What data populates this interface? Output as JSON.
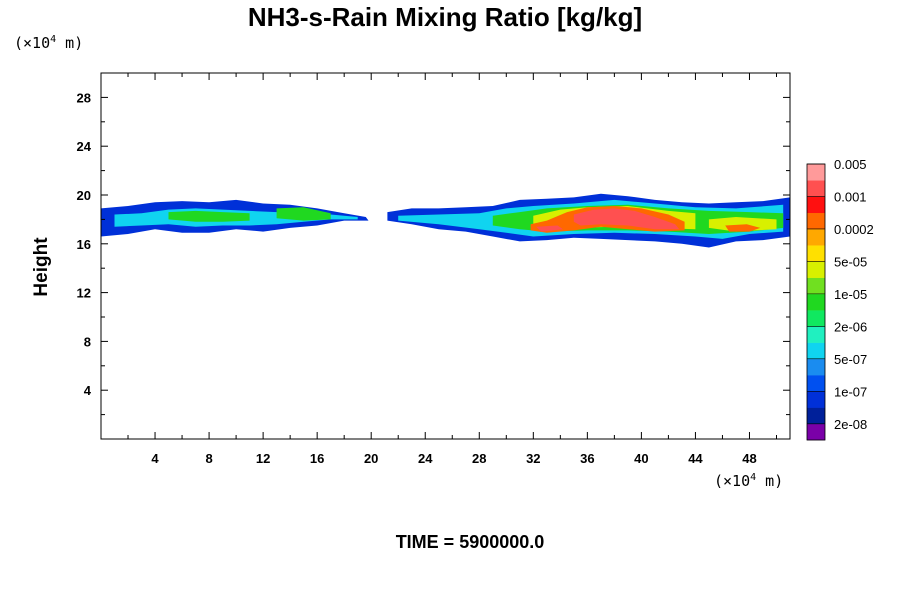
{
  "chart_data": {
    "type": "heatmap",
    "title": "NH3-s-Rain Mixing Ratio [kg/kg]",
    "xlabel": "",
    "ylabel": "Height",
    "x_unit": {
      "prefix": "(×10",
      "exp": "4",
      "suffix": " m)"
    },
    "y_unit": {
      "prefix": "(×10",
      "exp": "4",
      "suffix": " m)"
    },
    "xlim": [
      0,
      51
    ],
    "ylim": [
      0,
      30
    ],
    "x_ticks": [
      "4",
      "8",
      "12",
      "16",
      "20",
      "24",
      "28",
      "32",
      "36",
      "40",
      "44",
      "48"
    ],
    "y_ticks": [
      "4",
      "8",
      "12",
      "16",
      "20",
      "24",
      "28"
    ],
    "time_label": "TIME = 5900000.0",
    "colorbar": {
      "colors": [
        "#7a00a8",
        "#00209a",
        "#0030d8",
        "#0050f0",
        "#1a8cf0",
        "#10d4f0",
        "#20f0c0",
        "#10e860",
        "#20d820",
        "#70e020",
        "#d8f000",
        "#ffe000",
        "#ffa800",
        "#ff6800",
        "#ff1010",
        "#ff5050",
        "#ff9a9a"
      ],
      "labels": [
        "2e-08",
        "1e-07",
        "5e-07",
        "2e-06",
        "1e-05",
        "5e-05",
        "0.0002",
        "0.001",
        "0.005"
      ]
    },
    "regions": [
      {
        "level": 1,
        "color_index": 2,
        "points": [
          [
            0,
            18.9
          ],
          [
            2,
            19.1
          ],
          [
            4,
            19.4
          ],
          [
            6,
            19.5
          ],
          [
            8,
            19.4
          ],
          [
            10,
            19.6
          ],
          [
            12,
            19.3
          ],
          [
            14,
            19.2
          ],
          [
            16,
            18.9
          ],
          [
            18,
            18.5
          ],
          [
            19.6,
            18.2
          ],
          [
            19.8,
            17.9
          ],
          [
            18,
            17.9
          ],
          [
            16,
            17.5
          ],
          [
            14,
            17.3
          ],
          [
            12,
            17.0
          ],
          [
            10,
            17.2
          ],
          [
            8,
            16.9
          ],
          [
            6,
            16.9
          ],
          [
            4,
            17.2
          ],
          [
            2,
            16.8
          ],
          [
            0,
            16.6
          ]
        ]
      },
      {
        "level": 1,
        "color_index": 2,
        "points": [
          [
            21.2,
            18.6
          ],
          [
            23,
            18.9
          ],
          [
            25,
            18.9
          ],
          [
            27,
            19.0
          ],
          [
            29,
            19.1
          ],
          [
            31,
            19.6
          ],
          [
            33,
            19.7
          ],
          [
            35,
            19.8
          ],
          [
            37,
            20.1
          ],
          [
            39,
            19.9
          ],
          [
            41,
            19.6
          ],
          [
            43,
            19.4
          ],
          [
            45,
            19.3
          ],
          [
            47,
            19.4
          ],
          [
            49,
            19.5
          ],
          [
            51,
            19.8
          ],
          [
            51,
            16.6
          ],
          [
            49,
            16.3
          ],
          [
            47,
            16.2
          ],
          [
            45,
            15.7
          ],
          [
            43,
            16.0
          ],
          [
            41,
            16.2
          ],
          [
            39,
            16.3
          ],
          [
            37,
            16.4
          ],
          [
            35,
            16.5
          ],
          [
            33,
            16.3
          ],
          [
            31,
            16.2
          ],
          [
            29,
            16.6
          ],
          [
            27,
            17.0
          ],
          [
            25,
            17.2
          ],
          [
            23,
            17.6
          ],
          [
            21.2,
            17.9
          ]
        ]
      },
      {
        "level": 2,
        "color_index": 5,
        "points": [
          [
            1,
            18.4
          ],
          [
            3,
            18.5
          ],
          [
            5,
            18.8
          ],
          [
            7,
            18.9
          ],
          [
            9,
            18.8
          ],
          [
            11,
            18.7
          ],
          [
            13,
            18.6
          ],
          [
            15,
            18.5
          ],
          [
            17,
            18.4
          ],
          [
            19,
            18.2
          ],
          [
            19,
            18.0
          ],
          [
            17,
            18.0
          ],
          [
            15,
            17.8
          ],
          [
            13,
            17.6
          ],
          [
            11,
            17.5
          ],
          [
            9,
            17.5
          ],
          [
            7,
            17.4
          ],
          [
            5,
            17.6
          ],
          [
            3,
            17.5
          ],
          [
            1,
            17.4
          ]
        ]
      },
      {
        "level": 2,
        "color_index": 5,
        "points": [
          [
            22,
            18.3
          ],
          [
            25,
            18.4
          ],
          [
            28,
            18.5
          ],
          [
            30,
            18.9
          ],
          [
            32,
            19.1
          ],
          [
            35,
            19.3
          ],
          [
            38,
            19.6
          ],
          [
            41,
            19.3
          ],
          [
            44,
            19.0
          ],
          [
            47,
            18.9
          ],
          [
            50.5,
            19.2
          ],
          [
            50.5,
            17.0
          ],
          [
            48,
            16.8
          ],
          [
            46,
            16.4
          ],
          [
            44,
            16.6
          ],
          [
            41,
            16.8
          ],
          [
            38,
            16.9
          ],
          [
            35,
            16.8
          ],
          [
            32,
            16.6
          ],
          [
            30,
            16.9
          ],
          [
            28,
            17.2
          ],
          [
            25,
            17.6
          ],
          [
            22,
            17.9
          ]
        ]
      },
      {
        "level": 3,
        "color_index": 8,
        "points": [
          [
            5,
            18.6
          ],
          [
            7,
            18.7
          ],
          [
            9,
            18.6
          ],
          [
            11,
            18.5
          ],
          [
            11,
            17.9
          ],
          [
            9,
            17.8
          ],
          [
            7,
            17.8
          ],
          [
            5,
            18.0
          ]
        ]
      },
      {
        "level": 3,
        "color_index": 8,
        "points": [
          [
            13,
            18.9
          ],
          [
            15,
            19.0
          ],
          [
            17,
            18.5
          ],
          [
            17,
            18.0
          ],
          [
            15,
            17.9
          ],
          [
            13,
            18.1
          ]
        ]
      },
      {
        "level": 3,
        "color_index": 8,
        "points": [
          [
            29,
            18.3
          ],
          [
            31,
            18.6
          ],
          [
            33,
            18.9
          ],
          [
            36,
            19.1
          ],
          [
            39,
            19.2
          ],
          [
            42,
            18.9
          ],
          [
            45,
            18.7
          ],
          [
            48,
            18.6
          ],
          [
            50.5,
            18.5
          ],
          [
            50.5,
            17.3
          ],
          [
            48,
            17.0
          ],
          [
            45,
            16.8
          ],
          [
            42,
            17.0
          ],
          [
            39,
            17.1
          ],
          [
            36,
            17.1
          ],
          [
            33,
            17.0
          ],
          [
            31,
            17.2
          ],
          [
            29,
            17.5
          ]
        ]
      },
      {
        "level": 4,
        "color_index": 10,
        "points": [
          [
            32,
            18.3
          ],
          [
            34,
            18.8
          ],
          [
            36,
            19.0
          ],
          [
            39,
            19.1
          ],
          [
            42,
            18.7
          ],
          [
            44,
            18.5
          ],
          [
            44,
            17.2
          ],
          [
            41,
            17.3
          ],
          [
            38,
            17.4
          ],
          [
            35,
            17.3
          ],
          [
            32,
            17.4
          ]
        ]
      },
      {
        "level": 4,
        "color_index": 10,
        "points": [
          [
            45,
            18.0
          ],
          [
            47,
            18.2
          ],
          [
            50,
            18.0
          ],
          [
            50,
            17.2
          ],
          [
            47,
            17.0
          ],
          [
            45,
            17.3
          ]
        ]
      },
      {
        "level": 5,
        "color_index": 13,
        "points": [
          [
            31.8,
            17.6
          ],
          [
            33,
            17.9
          ],
          [
            34.5,
            18.6
          ],
          [
            36,
            19.0
          ],
          [
            38,
            19.1
          ],
          [
            40,
            18.9
          ],
          [
            42,
            18.4
          ],
          [
            43.2,
            17.8
          ],
          [
            43.2,
            17.1
          ],
          [
            41,
            17.0
          ],
          [
            39,
            17.2
          ],
          [
            37,
            17.4
          ],
          [
            35,
            17.1
          ],
          [
            33,
            16.9
          ],
          [
            31.8,
            17.1
          ]
        ]
      },
      {
        "level": 5,
        "color_index": 13,
        "points": [
          [
            46.2,
            17.5
          ],
          [
            47.8,
            17.6
          ],
          [
            48.8,
            17.3
          ],
          [
            48,
            17.0
          ],
          [
            46.5,
            17.0
          ]
        ]
      },
      {
        "level": 6,
        "color_index": 15,
        "points": [
          [
            35,
            18.4
          ],
          [
            36.5,
            18.8
          ],
          [
            38,
            18.9
          ],
          [
            39.5,
            18.7
          ],
          [
            41,
            18.2
          ],
          [
            42.5,
            17.6
          ],
          [
            42.8,
            17.2
          ],
          [
            41,
            17.2
          ],
          [
            39,
            17.5
          ],
          [
            37,
            17.6
          ],
          [
            35.5,
            17.5
          ],
          [
            35,
            17.8
          ]
        ]
      },
      {
        "level": 6,
        "color_index": 15,
        "points": [
          [
            32.2,
            17.4
          ],
          [
            33.8,
            17.5
          ],
          [
            34.2,
            17.2
          ],
          [
            32.6,
            17.0
          ]
        ]
      }
    ]
  }
}
